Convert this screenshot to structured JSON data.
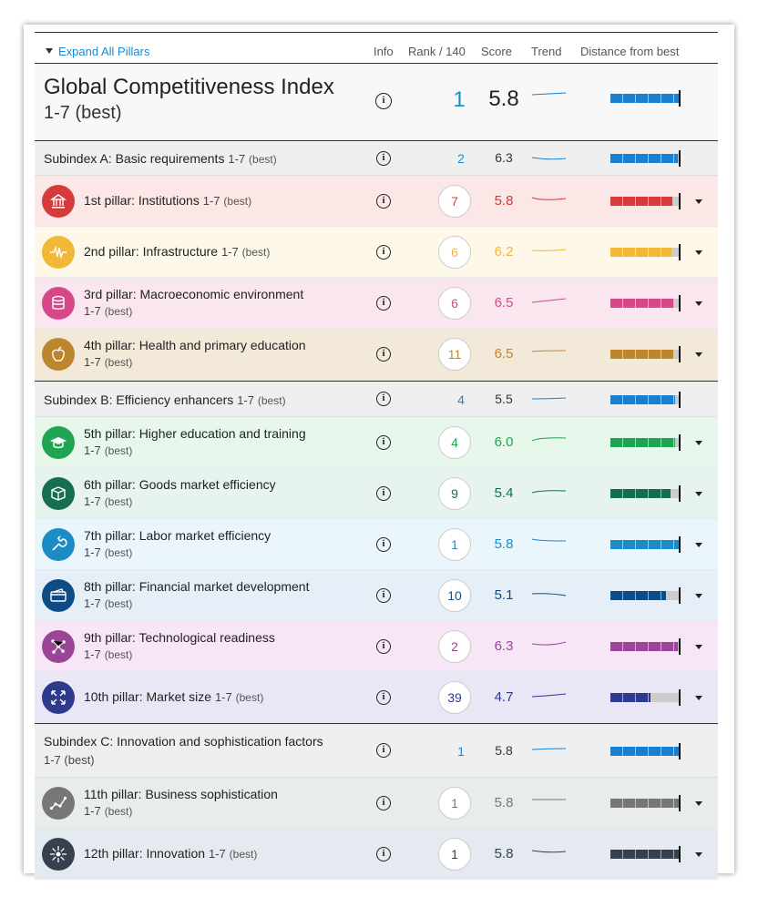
{
  "header": {
    "expand_label": "Expand All Pillars",
    "col_info": "Info",
    "col_rank": "Rank / 140",
    "col_score": "Score",
    "col_trend": "Trend",
    "col_distance": "Distance from best"
  },
  "gci": {
    "title": "Global Competitiveness Index",
    "scale": "1-7 (best)",
    "rank": "1",
    "score": "5.8",
    "distance": 1.0,
    "color": "#1a7fcf"
  },
  "subA": {
    "label": "Subindex A: Basic requirements",
    "scale": "1-7",
    "scale_note": "(best)",
    "rank": "2",
    "score": "6.3",
    "distance": 0.98,
    "color": "#1a7fcf"
  },
  "pillars1": [
    {
      "name": "1st pillar: Institutions",
      "scale": "1-7",
      "scale_note": "(best)",
      "rank": "7",
      "score": "5.8",
      "color": "#d63a3a",
      "bg": "#fbe7e5",
      "distance": 0.9,
      "icon": "building-icon"
    },
    {
      "name": "2nd pillar: Infrastructure",
      "scale": "1-7",
      "scale_note": "(best)",
      "rank": "6",
      "score": "6.2",
      "color": "#f1b736",
      "bg": "#fdf8e7",
      "distance": 0.88,
      "icon": "infrastructure-icon"
    },
    {
      "name": "3rd pillar: Macroeconomic environment",
      "scale": "1-7",
      "scale_note": "(best)",
      "rank": "6",
      "score": "6.5",
      "color": "#d6488a",
      "bg": "#f9e6ef",
      "distance": 0.92,
      "icon": "coins-icon"
    },
    {
      "name": "4th pillar: Health and primary education",
      "scale": "1-7",
      "scale_note": "(best)",
      "rank": "11",
      "score": "6.5",
      "color": "#bc862c",
      "bg": "#f3e9d9",
      "distance": 0.91,
      "icon": "apple-icon"
    }
  ],
  "subB": {
    "label": "Subindex B: Efficiency enhancers",
    "scale": "1-7",
    "scale_note": "(best)",
    "rank": "4",
    "score": "5.5",
    "distance": 0.94,
    "color": "#1a7fcf"
  },
  "pillars2": [
    {
      "name": "5th pillar: Higher education and training",
      "scale": "1-7",
      "scale_note": "(best)",
      "rank": "4",
      "score": "6.0",
      "color": "#1fa551",
      "bg": "#e7f7ec",
      "distance": 0.94,
      "icon": "graduation-cap-icon"
    },
    {
      "name": "6th pillar: Goods market efficiency",
      "scale": "1-7",
      "scale_note": "(best)",
      "rank": "9",
      "score": "5.4",
      "color": "#156f4f",
      "bg": "#e7f3ef",
      "distance": 0.87,
      "icon": "box-icon"
    },
    {
      "name": "7th pillar: Labor market efficiency",
      "scale": "1-7",
      "scale_note": "(best)",
      "rank": "1",
      "score": "5.8",
      "color": "#1b8cc4",
      "bg": "#eaf5fc",
      "distance": 1.0,
      "icon": "wrench-icon"
    },
    {
      "name": "8th pillar: Financial market development",
      "scale": "1-7",
      "scale_note": "(best)",
      "rank": "10",
      "score": "5.1",
      "color": "#0e4c86",
      "bg": "#e6eef8",
      "distance": 0.8,
      "icon": "wallet-icon"
    },
    {
      "name": "9th pillar: Technological readiness",
      "scale": "1-7",
      "scale_note": "(best)",
      "rank": "2",
      "score": "6.3",
      "color": "#9b4598",
      "bg": "#f7e6f6",
      "distance": 0.97,
      "icon": "network-icon"
    },
    {
      "name": "10th pillar: Market size",
      "scale": "1-7",
      "scale_note": "(best)",
      "rank": "39",
      "score": "4.7",
      "color": "#2e3a8c",
      "bg": "#e9e7f6",
      "distance": 0.58,
      "icon": "expand-arrows-icon"
    }
  ],
  "subC": {
    "label": "Subindex C: Innovation and sophistication factors",
    "scale": "1-7 (best)",
    "rank": "1",
    "score": "5.8",
    "distance": 1.0,
    "color": "#1a7fcf"
  },
  "pillars3": [
    {
      "name": "11th pillar: Business sophistication",
      "scale": "1-7",
      "scale_note": "(best)",
      "rank": "1",
      "score": "5.8",
      "color": "#777777",
      "bg": "#e8ede9",
      "distance": 1.0,
      "icon": "chart-line-icon"
    },
    {
      "name": "12th pillar: Innovation",
      "scale": "1-7",
      "scale_note": "(best)",
      "rank": "1",
      "score": "5.8",
      "color": "#37404f",
      "bg": "#e5eaf1",
      "distance": 1.0,
      "icon": "burst-icon"
    }
  ]
}
